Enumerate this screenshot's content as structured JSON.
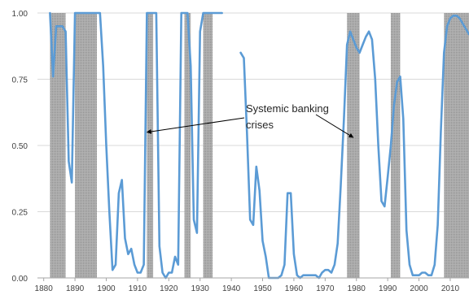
{
  "chart_data": {
    "type": "line",
    "title": "",
    "xlabel": "",
    "ylabel": "",
    "xlim": [
      1878,
      2016
    ],
    "ylim": [
      0,
      1
    ],
    "grid": "horizontal",
    "legend": "none",
    "x_ticks": [
      "1880",
      "1890",
      "1900",
      "1910",
      "1920",
      "1930",
      "1940",
      "1950",
      "1960",
      "1970",
      "1980",
      "1990",
      "2000",
      "2010"
    ],
    "x_tick_values": [
      1880,
      1890,
      1900,
      1910,
      1920,
      1930,
      1940,
      1950,
      1960,
      1970,
      1980,
      1990,
      2000,
      2010
    ],
    "y_ticks": [
      "0.00",
      "0.25",
      "0.50",
      "0.75",
      "1.00"
    ],
    "y_tick_values": [
      0,
      0.25,
      0.5,
      0.75,
      1
    ],
    "line_color": "#5b9bd5",
    "band_color": "#a6a6a6",
    "annotation": {
      "lines": [
        "Systemic banking",
        "crises"
      ],
      "arrow_targets": [
        [
          1913,
          0.55
        ],
        [
          1979,
          0.53
        ]
      ]
    },
    "crisis_bands": [
      [
        1882,
        1887
      ],
      [
        1890,
        1897
      ],
      [
        1913,
        1915
      ],
      [
        1925,
        1927
      ],
      [
        1931,
        1934
      ],
      [
        1977,
        1981
      ],
      [
        1991,
        1994
      ],
      [
        2008,
        2016
      ]
    ],
    "series": [
      {
        "segments": [
          [
            [
              1882,
              1.0
            ],
            [
              1883,
              0.76
            ],
            [
              1884,
              0.95
            ],
            [
              1885,
              0.95
            ],
            [
              1886,
              0.95
            ],
            [
              1887,
              0.93
            ],
            [
              1888,
              0.44
            ],
            [
              1889,
              0.36
            ],
            [
              1890,
              1.0
            ],
            [
              1891,
              1.0
            ],
            [
              1892,
              1.0
            ],
            [
              1893,
              1.0
            ],
            [
              1894,
              1.0
            ],
            [
              1895,
              1.0
            ],
            [
              1896,
              1.0
            ],
            [
              1897,
              1.0
            ],
            [
              1898,
              1.0
            ],
            [
              1899,
              0.8
            ],
            [
              1900,
              0.5
            ],
            [
              1901,
              0.25
            ],
            [
              1902,
              0.03
            ],
            [
              1903,
              0.05
            ],
            [
              1904,
              0.32
            ],
            [
              1905,
              0.37
            ],
            [
              1906,
              0.15
            ],
            [
              1907,
              0.09
            ],
            [
              1908,
              0.11
            ],
            [
              1909,
              0.05
            ],
            [
              1910,
              0.02
            ],
            [
              1911,
              0.02
            ],
            [
              1912,
              0.05
            ],
            [
              1913,
              1.0
            ],
            [
              1914,
              1.0
            ],
            [
              1915,
              1.0
            ],
            [
              1916,
              1.0
            ],
            [
              1917,
              0.12
            ],
            [
              1918,
              0.02
            ],
            [
              1919,
              0.0
            ],
            [
              1920,
              0.02
            ],
            [
              1921,
              0.02
            ],
            [
              1922,
              0.08
            ],
            [
              1923,
              0.05
            ],
            [
              1924,
              1.0
            ],
            [
              1925,
              1.0
            ],
            [
              1926,
              1.0
            ],
            [
              1927,
              0.8
            ],
            [
              1928,
              0.22
            ],
            [
              1929,
              0.17
            ],
            [
              1930,
              0.93
            ],
            [
              1931,
              1.0
            ],
            [
              1932,
              1.0
            ],
            [
              1933,
              1.0
            ],
            [
              1934,
              1.0
            ],
            [
              1935,
              1.0
            ],
            [
              1936,
              1.0
            ],
            [
              1937,
              1.0
            ]
          ],
          [
            [
              1943,
              0.85
            ],
            [
              1944,
              0.83
            ],
            [
              1945,
              0.55
            ],
            [
              1946,
              0.22
            ],
            [
              1947,
              0.2
            ],
            [
              1948,
              0.42
            ],
            [
              1949,
              0.33
            ],
            [
              1950,
              0.14
            ],
            [
              1951,
              0.08
            ],
            [
              1952,
              0.0
            ],
            [
              1953,
              0.0
            ],
            [
              1954,
              0.0
            ],
            [
              1955,
              0.0
            ],
            [
              1956,
              0.01
            ],
            [
              1957,
              0.05
            ],
            [
              1958,
              0.32
            ],
            [
              1959,
              0.32
            ],
            [
              1960,
              0.09
            ],
            [
              1961,
              0.01
            ],
            [
              1962,
              0.0
            ],
            [
              1963,
              0.01
            ],
            [
              1964,
              0.01
            ],
            [
              1965,
              0.01
            ],
            [
              1966,
              0.01
            ],
            [
              1967,
              0.01
            ],
            [
              1968,
              0.0
            ],
            [
              1969,
              0.02
            ],
            [
              1970,
              0.03
            ],
            [
              1971,
              0.03
            ],
            [
              1972,
              0.02
            ],
            [
              1973,
              0.05
            ],
            [
              1974,
              0.13
            ],
            [
              1975,
              0.35
            ],
            [
              1976,
              0.6
            ],
            [
              1977,
              0.88
            ],
            [
              1978,
              0.93
            ],
            [
              1979,
              0.9
            ],
            [
              1980,
              0.87
            ],
            [
              1981,
              0.85
            ],
            [
              1982,
              0.88
            ],
            [
              1983,
              0.91
            ],
            [
              1984,
              0.93
            ],
            [
              1985,
              0.9
            ],
            [
              1986,
              0.75
            ],
            [
              1987,
              0.5
            ],
            [
              1988,
              0.29
            ],
            [
              1989,
              0.27
            ],
            [
              1990,
              0.38
            ],
            [
              1991,
              0.5
            ],
            [
              1992,
              0.65
            ],
            [
              1993,
              0.74
            ],
            [
              1994,
              0.76
            ],
            [
              1995,
              0.6
            ],
            [
              1996,
              0.18
            ],
            [
              1997,
              0.05
            ],
            [
              1998,
              0.01
            ],
            [
              1999,
              0.01
            ],
            [
              2000,
              0.01
            ],
            [
              2001,
              0.02
            ],
            [
              2002,
              0.02
            ],
            [
              2003,
              0.01
            ],
            [
              2004,
              0.01
            ],
            [
              2005,
              0.05
            ],
            [
              2006,
              0.2
            ],
            [
              2007,
              0.55
            ],
            [
              2008,
              0.85
            ],
            [
              2009,
              0.95
            ],
            [
              2010,
              0.98
            ],
            [
              2011,
              0.99
            ],
            [
              2012,
              0.99
            ],
            [
              2013,
              0.98
            ],
            [
              2014,
              0.96
            ],
            [
              2015,
              0.94
            ],
            [
              2016,
              0.92
            ]
          ]
        ]
      }
    ]
  }
}
